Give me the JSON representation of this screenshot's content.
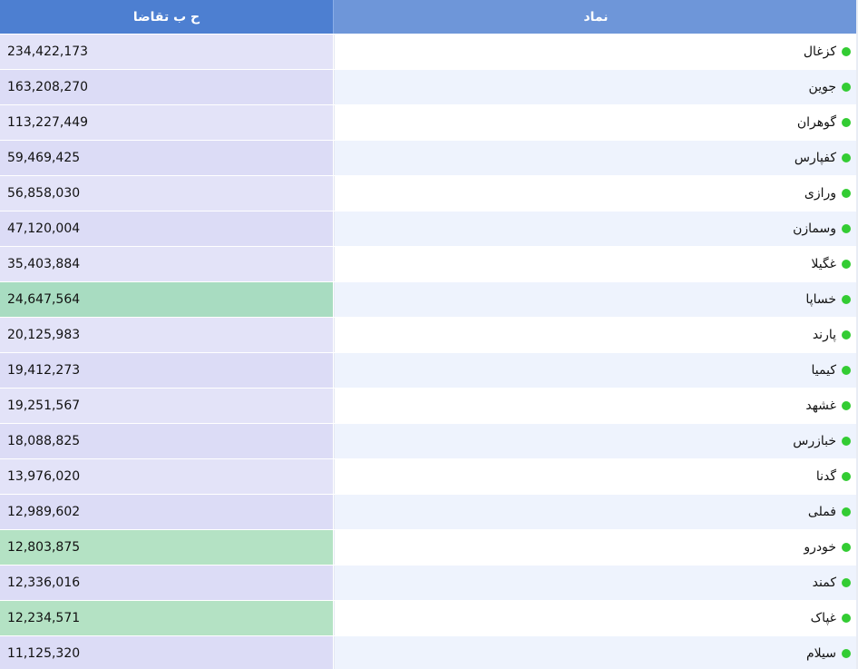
{
  "table": {
    "headers": {
      "symbol": "نماد",
      "value": "ح ب تقاضا"
    },
    "rows": [
      {
        "symbol": "کزغال",
        "value": "234,422,173"
      },
      {
        "symbol": "جوین",
        "value": "163,208,270"
      },
      {
        "symbol": "گوهران",
        "value": "113,227,449"
      },
      {
        "symbol": "کفپارس",
        "value": "59,469,425"
      },
      {
        "symbol": "ورازی",
        "value": "56,858,030"
      },
      {
        "symbol": "وسمازن",
        "value": "47,120,004"
      },
      {
        "symbol": "غگیلا",
        "value": "35,403,884"
      },
      {
        "symbol": "خساپا",
        "value": "24,647,564"
      },
      {
        "symbol": "پارند",
        "value": "20,125,983"
      },
      {
        "symbol": "کیمیا",
        "value": "19,412,273"
      },
      {
        "symbol": "غشهد",
        "value": "19,251,567"
      },
      {
        "symbol": "خبازرس",
        "value": "18,088,825"
      },
      {
        "symbol": "گدنا",
        "value": "13,976,020"
      },
      {
        "symbol": "فملی",
        "value": "12,989,602"
      },
      {
        "symbol": "خودرو",
        "value": "12,803,875"
      },
      {
        "symbol": "کمند",
        "value": "12,336,016"
      },
      {
        "symbol": "غپاک",
        "value": "12,234,571"
      },
      {
        "symbol": "سیلام",
        "value": "11,125,320"
      }
    ]
  },
  "colors": {
    "header_symbol_bg": "#6e96d9",
    "header_value_bg": "#4d7fd1",
    "status_dot": "#33cc33",
    "highlight_green_1": "#a8dcc1",
    "highlight_green_2": "#b4e2c4"
  },
  "icons": {
    "status": "status-dot-icon"
  }
}
